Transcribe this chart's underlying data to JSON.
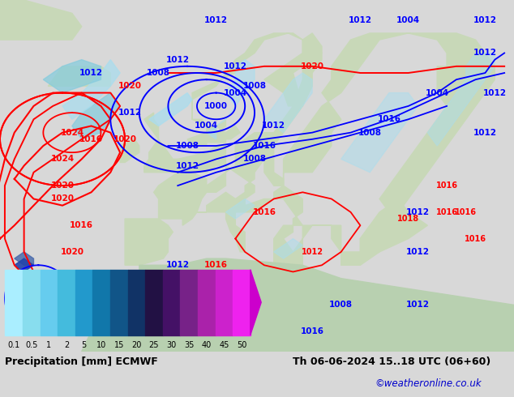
{
  "title_left": "Precipitation [mm] ECMWF",
  "title_right": "Th 06-06-2024 15..18 UTC (06+60)",
  "credit": "©weatheronline.co.uk",
  "colorbar_levels": [
    0.1,
    0.5,
    1,
    2,
    5,
    10,
    15,
    20,
    25,
    30,
    35,
    40,
    45,
    50
  ],
  "colorbar_colors": [
    "#aaeeff",
    "#88ddee",
    "#66ccee",
    "#44bbdd",
    "#2299cc",
    "#1177aa",
    "#115588",
    "#113366",
    "#221144",
    "#441166",
    "#772288",
    "#aa22aa",
    "#cc22cc",
    "#ee22ee"
  ],
  "fig_bg": "#d8d8d8",
  "map_ocean": "#c8d8e8",
  "map_land": "#c8d8b8",
  "map_land2": "#b8ccb0",
  "title_fontsize": 9,
  "credit_color": "#0000cc",
  "label_fontsize": 7.5
}
